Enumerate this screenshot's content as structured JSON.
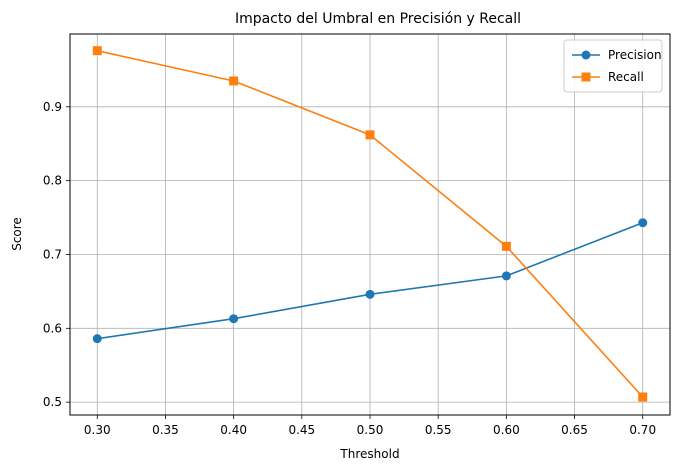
{
  "chart_data": {
    "type": "line",
    "title": "Impacto del Umbral en Precisión y Recall",
    "xlabel": "Threshold",
    "ylabel": "Score",
    "x": [
      0.3,
      0.4,
      0.5,
      0.6,
      0.7
    ],
    "x_ticks": [
      "0.30",
      "0.35",
      "0.40",
      "0.45",
      "0.50",
      "0.55",
      "0.60",
      "0.65",
      "0.70"
    ],
    "y_ticks": [
      "0.5",
      "0.6",
      "0.7",
      "0.8",
      "0.9"
    ],
    "xlim": [
      0.28,
      0.72
    ],
    "ylim": [
      0.4826,
      0.9986
    ],
    "grid": true,
    "legend_position": "top-right",
    "series": [
      {
        "name": "Precision",
        "color": "#1f77b4",
        "marker": "circle",
        "values": [
          0.586,
          0.613,
          0.646,
          0.671,
          0.743
        ]
      },
      {
        "name": "Recall",
        "color": "#ff7f0e",
        "marker": "square",
        "values": [
          0.976,
          0.935,
          0.862,
          0.711,
          0.507
        ]
      }
    ]
  }
}
